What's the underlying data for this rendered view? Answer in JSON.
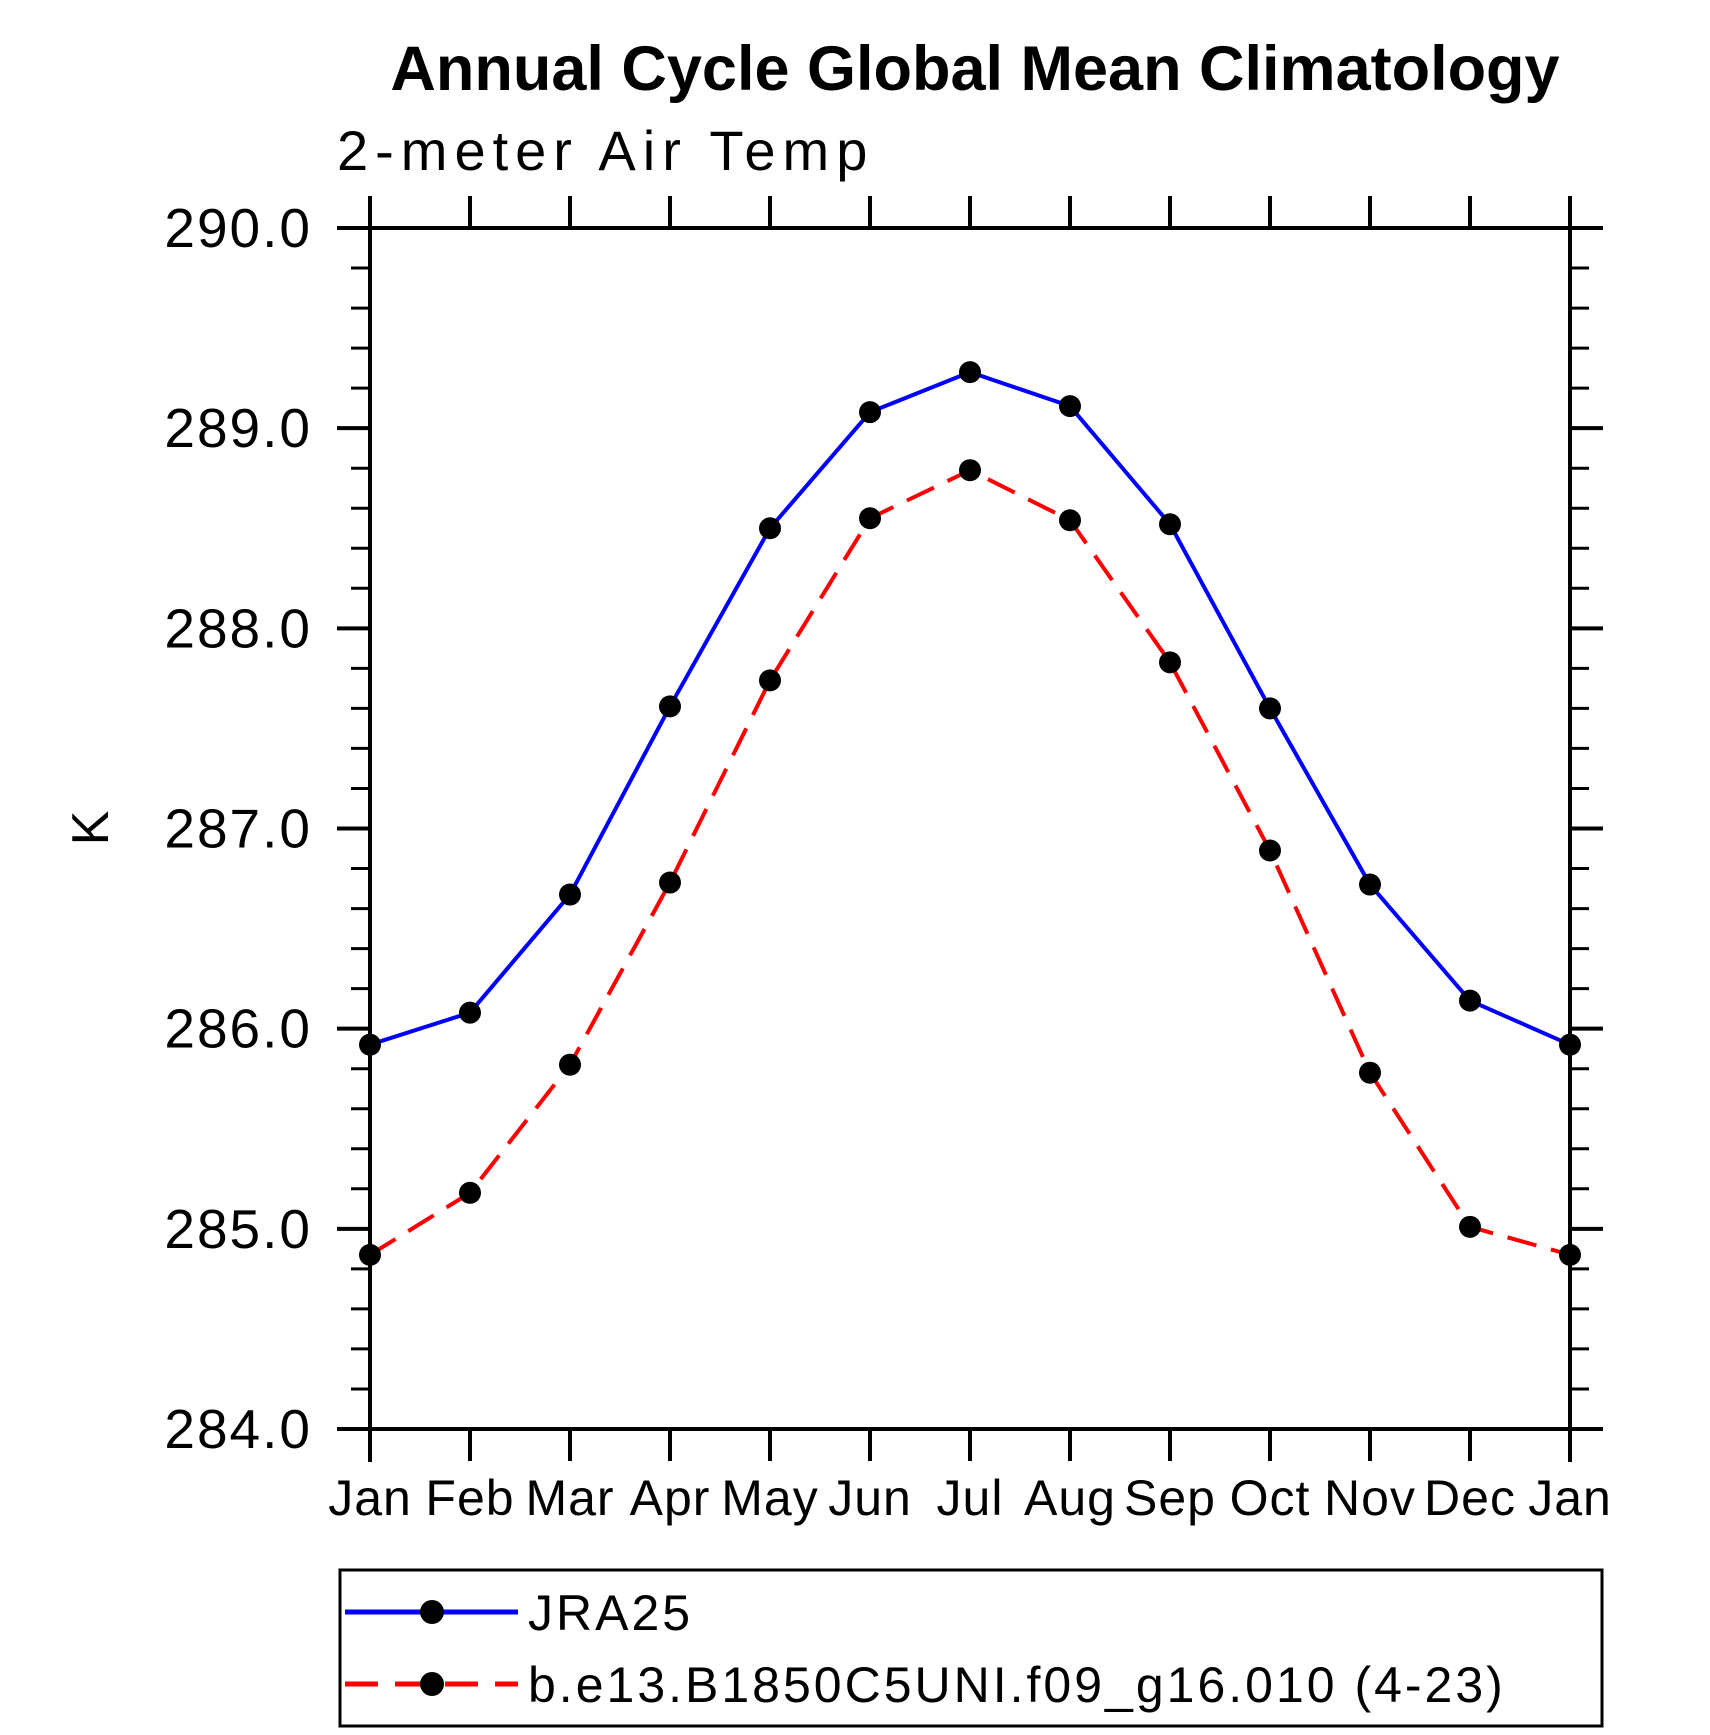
{
  "title": "Annual Cycle Global Mean Climatology",
  "subtitle": "2-meter Air Temp",
  "chart_data": {
    "type": "line",
    "title": "Annual Cycle Global Mean Climatology",
    "subtitle": "2-meter Air Temp",
    "xlabel": "",
    "ylabel": "K",
    "x_tick_labels": [
      "Jan",
      "Feb",
      "Mar",
      "Apr",
      "May",
      "Jun",
      "Jul",
      "Aug",
      "Sep",
      "Oct",
      "Nov",
      "Dec",
      "Jan"
    ],
    "ylim": [
      284.0,
      290.0
    ],
    "y_major_step": 1.0,
    "y_minor_step": 0.2,
    "y_tick_decimals": 1,
    "grid": false,
    "legend_position": "bottom",
    "series": [
      {
        "name": "JRA25",
        "color": "#0000ff",
        "line_style": "solid",
        "marker": "circle",
        "marker_color": "#000000",
        "values": [
          285.92,
          286.08,
          286.67,
          287.61,
          288.5,
          289.08,
          289.28,
          289.11,
          288.52,
          287.6,
          286.72,
          286.14,
          285.92
        ]
      },
      {
        "name": "b.e13.B1850C5UNI.f09_g16.010 (4-23)",
        "color": "#ff0000",
        "line_style": "dashed",
        "marker": "circle",
        "marker_color": "#000000",
        "values": [
          284.87,
          285.18,
          285.82,
          286.73,
          287.74,
          288.55,
          288.79,
          288.54,
          287.83,
          286.89,
          285.78,
          285.01,
          284.87
        ]
      }
    ]
  },
  "colors": {
    "background": "#ffffff",
    "axis": "#000000",
    "text": "#000000",
    "series_1": "#0000ff",
    "series_2": "#ff0000",
    "marker": "#000000"
  }
}
